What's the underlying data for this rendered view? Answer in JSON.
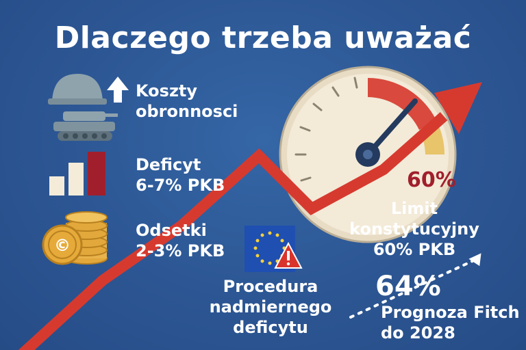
{
  "title": "Dlaczego trzeba uważać",
  "items": [
    {
      "line1": "Koszty",
      "line2": "obronnosci",
      "icon": "helmet-tank-icon",
      "indicator": "arrow-up-icon"
    },
    {
      "line1": "Deficyt",
      "line2": "6-7% PKB",
      "icon": "bar-chart-icon"
    },
    {
      "line1": "Odsetki",
      "line2": "2-3% PKB",
      "icon": "coins-icon"
    }
  ],
  "gauge": {
    "value_label": "60%"
  },
  "limit": {
    "line1": "Limit",
    "line2": "konstytucyjny",
    "line3": "60% PKB"
  },
  "procedure": {
    "line1": "Procedura",
    "line2": "nadmiernego",
    "line3": "deficytu",
    "icon": "eu-flag-warning-icon"
  },
  "forecast": {
    "value": "64%",
    "line1": "Prognoza Fitch",
    "line2": "do 2028"
  },
  "colors": {
    "background": "#2c5693",
    "trend_arrow": "#d63a2f",
    "text": "#ffffff",
    "gauge_red": "#c0392b"
  }
}
